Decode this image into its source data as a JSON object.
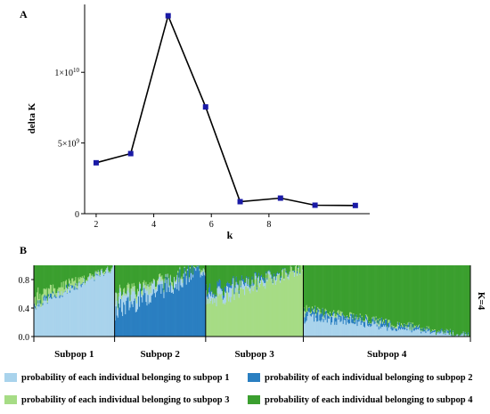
{
  "chart_data": [
    {
      "type": "line",
      "panel_label": "A",
      "xlabel": "k",
      "ylabel": "delta K",
      "x_ticks": [
        2,
        4,
        6,
        8
      ],
      "y_ticks": [
        {
          "value": 0,
          "label": "0"
        },
        {
          "value": 5000000000,
          "label": "5×10",
          "exp": "9"
        },
        {
          "value": 10000000000,
          "label": "1×10",
          "exp": "10"
        }
      ],
      "xlim": [
        1.6,
        11.5
      ],
      "ylim": [
        0,
        14800000000
      ],
      "x": [
        2,
        3.2,
        4.5,
        5.8,
        7.0,
        8.4,
        9.6,
        11.0
      ],
      "y": [
        3600000000,
        4250000000,
        14000000000,
        7550000000,
        850000000,
        1100000000,
        600000000,
        580000000
      ],
      "line_color": "#000000",
      "marker_color": "#1a1aa6"
    },
    {
      "type": "area",
      "panel_label": "B",
      "y_ticks": [
        "0.0",
        "0.4",
        "0.8"
      ],
      "ylim": [
        0,
        1
      ],
      "side_label": "K=4",
      "groups": [
        {
          "label": "Subpop 1",
          "count": 86
        },
        {
          "label": "Subpop 2",
          "count": 97
        },
        {
          "label": "Subpop 3",
          "count": 104
        },
        {
          "label": "Subpop 4",
          "count": 178
        }
      ],
      "series": [
        {
          "name": "probability of each individual belonging to subpop 1",
          "color": "#a9d3ec"
        },
        {
          "name": "probability of each individual belonging to subpop 2",
          "color": "#2a7fc1"
        },
        {
          "name": "probability of each individual belonging to subpop 3",
          "color": "#a6dc85"
        },
        {
          "name": "probability of each individual belonging to subpop 4",
          "color": "#3b9f2f"
        }
      ]
    }
  ]
}
